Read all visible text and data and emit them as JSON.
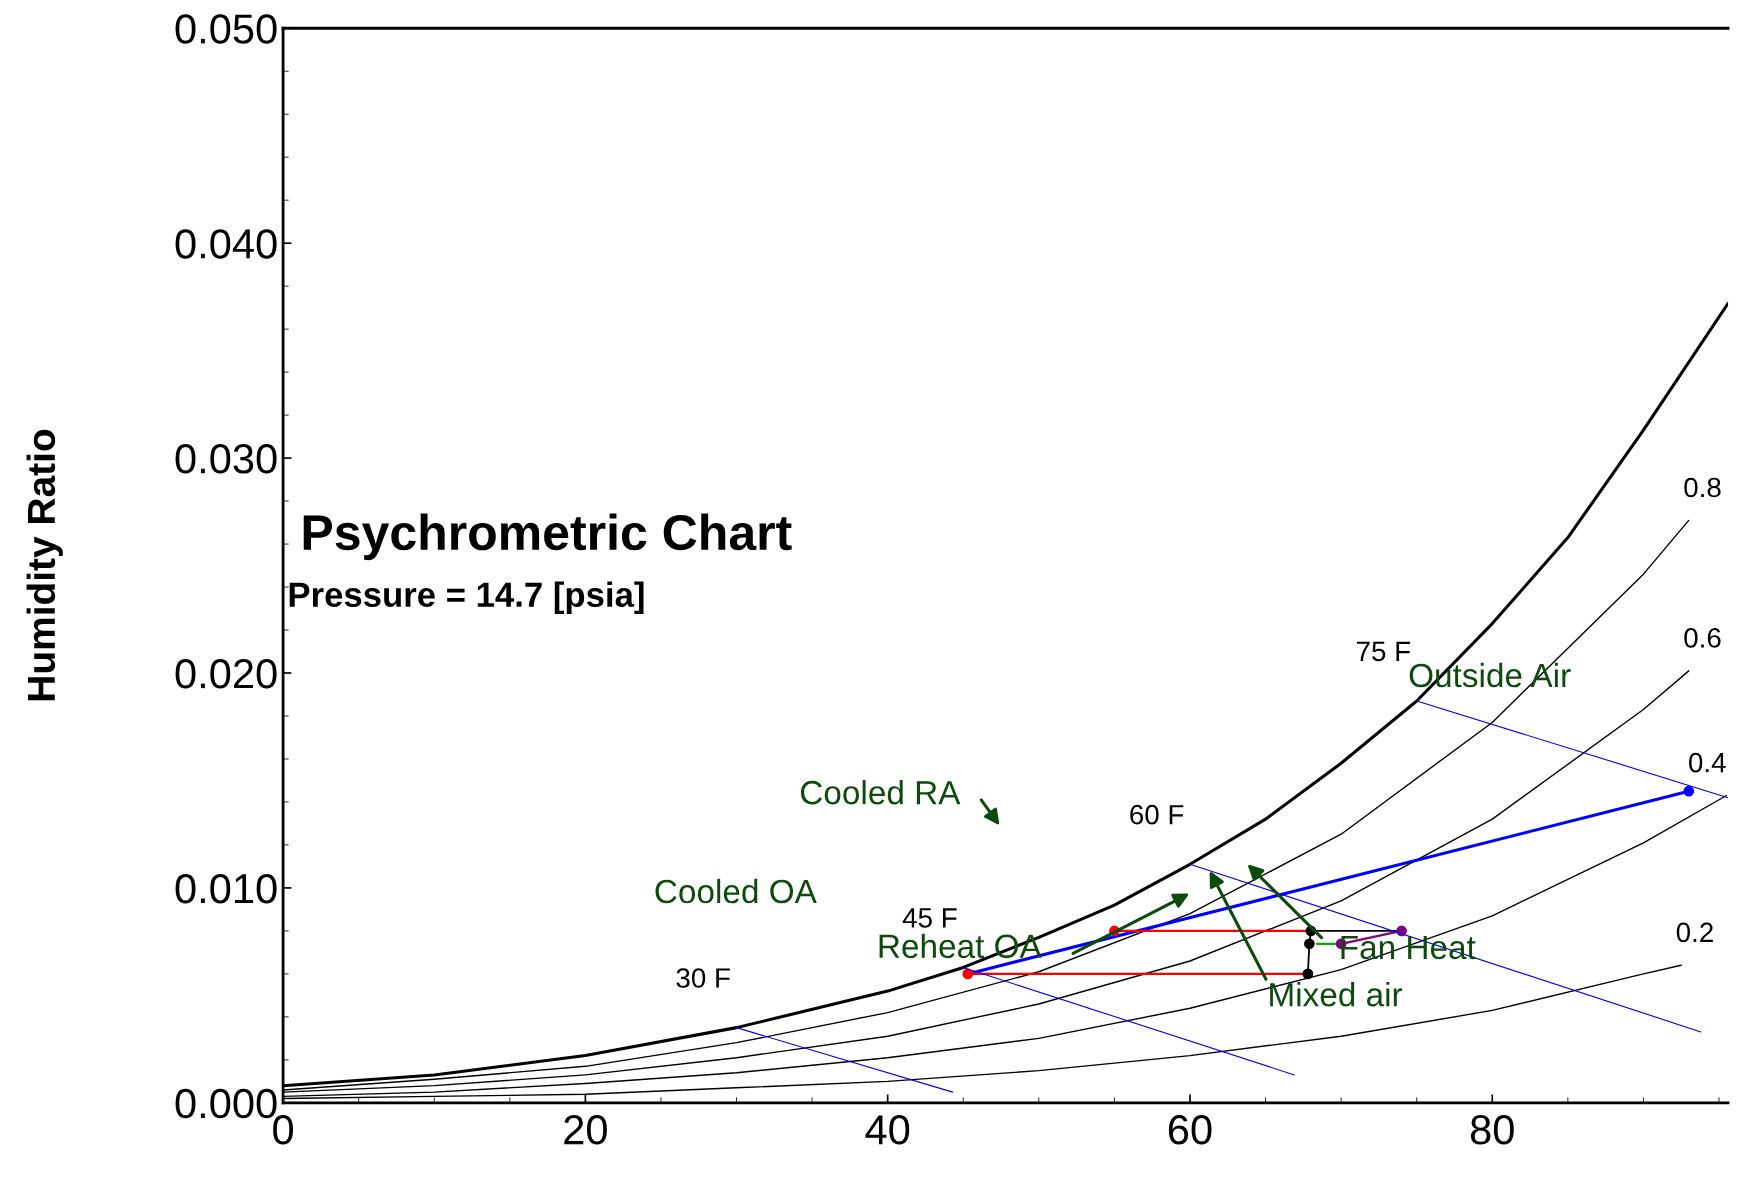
{
  "chart_data": {
    "type": "line",
    "title": "Psychrometric Chart",
    "subtitle": "Pressure = 14.7 [psia]",
    "ylabel": "Humidity Ratio",
    "xlim": [
      0,
      95.6
    ],
    "ylim": [
      0,
      0.05
    ],
    "xticks": [
      0,
      20,
      40,
      60,
      80
    ],
    "yticks": [
      {
        "value": 0,
        "label": "0.000"
      },
      {
        "value": 0.01,
        "label": "0.010"
      },
      {
        "value": 0.02,
        "label": "0.020"
      },
      {
        "value": 0.03,
        "label": "0.030"
      },
      {
        "value": 0.04,
        "label": "0.040"
      },
      {
        "value": 0.05,
        "label": "0.050"
      }
    ],
    "grid": false,
    "legend": false,
    "line_style": "solid",
    "series": [
      {
        "color": "#000000",
        "x": [
          0,
          10,
          20,
          30,
          40,
          45,
          50,
          55,
          60,
          65,
          70,
          75,
          80,
          85,
          90,
          95.6
        ],
        "values": [
          0.0008,
          0.0013,
          0.0022,
          0.0035,
          0.0052,
          0.0063,
          0.0077,
          0.0092,
          0.0111,
          0.0132,
          0.0158,
          0.0187,
          0.0223,
          0.0263,
          0.0313,
          0.0372
        ]
      },
      {
        "name": "0.8",
        "color": "#000000",
        "x": [
          0,
          10,
          20,
          30,
          40,
          50,
          60,
          70,
          80,
          90,
          93
        ],
        "values": [
          0.0006,
          0.0011,
          0.0017,
          0.0028,
          0.0042,
          0.0061,
          0.0088,
          0.0125,
          0.0177,
          0.0246,
          0.0271
        ]
      },
      {
        "name": "0.6",
        "color": "#000000",
        "x": [
          0,
          10,
          20,
          30,
          40,
          50,
          60,
          70,
          80,
          90,
          93
        ],
        "values": [
          0.0005,
          0.0008,
          0.0013,
          0.0021,
          0.0031,
          0.0046,
          0.0066,
          0.0094,
          0.0132,
          0.0183,
          0.0201
        ]
      },
      {
        "name": "0.4",
        "color": "#000000",
        "x": [
          0,
          10,
          20,
          30,
          40,
          50,
          60,
          70,
          80,
          90,
          95.5
        ],
        "values": [
          0.0003,
          0.0005,
          0.0009,
          0.0014,
          0.0021,
          0.003,
          0.0044,
          0.0062,
          0.0087,
          0.0121,
          0.0143
        ]
      },
      {
        "name": "0.2",
        "color": "#000000",
        "x": [
          0,
          10,
          20,
          30,
          40,
          50,
          60,
          70,
          80,
          90,
          92.5
        ],
        "values": [
          0.0002,
          0.0003,
          0.0004,
          0.0007,
          0.001,
          0.0015,
          0.0022,
          0.0031,
          0.0043,
          0.006,
          0.0064
        ]
      },
      {
        "name": "30 F",
        "color": "#0000ff",
        "x": [
          30,
          44.3
        ],
        "values": [
          0.0035,
          0.0005
        ]
      },
      {
        "name": "45 F",
        "color": "#0000ff",
        "x": [
          45,
          66.9
        ],
        "values": [
          0.0063,
          0.0013
        ]
      },
      {
        "name": "60 F",
        "color": "#0000ff",
        "x": [
          60,
          93.8
        ],
        "values": [
          0.0111,
          0.0033
        ]
      },
      {
        "name": "75 F",
        "color": "#0000ff",
        "x": [
          75,
          95.6
        ],
        "values": [
          0.0187,
          0.0142
        ]
      },
      {
        "color": "#0000ff",
        "x": [
          45.3,
          93
        ],
        "values": [
          0.006,
          0.0145
        ]
      },
      {
        "color": "#ff0000",
        "x": [
          55,
          68
        ],
        "values": [
          0.008,
          0.008
        ]
      },
      {
        "color": "#ff0000",
        "x": [
          45.3,
          67.8
        ],
        "values": [
          0.006,
          0.006
        ]
      },
      {
        "color": "#000000",
        "x": [
          68,
          74
        ],
        "values": [
          0.008,
          0.008
        ]
      },
      {
        "color": "#000000",
        "x": [
          68,
          67.9,
          67.8
        ],
        "values": [
          0.008,
          0.0074,
          0.006
        ]
      },
      {
        "color": "#800080",
        "x": [
          74,
          70
        ],
        "values": [
          0.008,
          0.0074
        ]
      },
      {
        "color": "#00aa00",
        "x": [
          68.4,
          70
        ],
        "values": [
          0.0074,
          0.0074
        ]
      },
      {
        "type": "scatter",
        "marker": "circle",
        "color": "#ff0000",
        "x": [
          55,
          45.3
        ],
        "values": [
          0.008,
          0.006
        ]
      },
      {
        "type": "scatter",
        "marker": "circle",
        "color": "#000000",
        "x": [
          68,
          67.9,
          67.8
        ],
        "values": [
          0.008,
          0.0074,
          0.006
        ]
      },
      {
        "type": "scatter",
        "marker": "circle",
        "color": "#800080",
        "x": [
          74,
          70
        ],
        "values": [
          0.008,
          0.0074
        ]
      },
      {
        "type": "scatter",
        "marker": "circle",
        "color": "#0000ff",
        "x": [
          93
        ],
        "values": [
          0.0145
        ]
      }
    ],
    "annotations": [
      "Cooled RA",
      "Cooled OA",
      "Reheat OA",
      {
        "text": "Mixed air",
        "x": 61.3,
        "y": 0.0108
      },
      "Fan Heat",
      "Outside Air"
    ]
  }
}
